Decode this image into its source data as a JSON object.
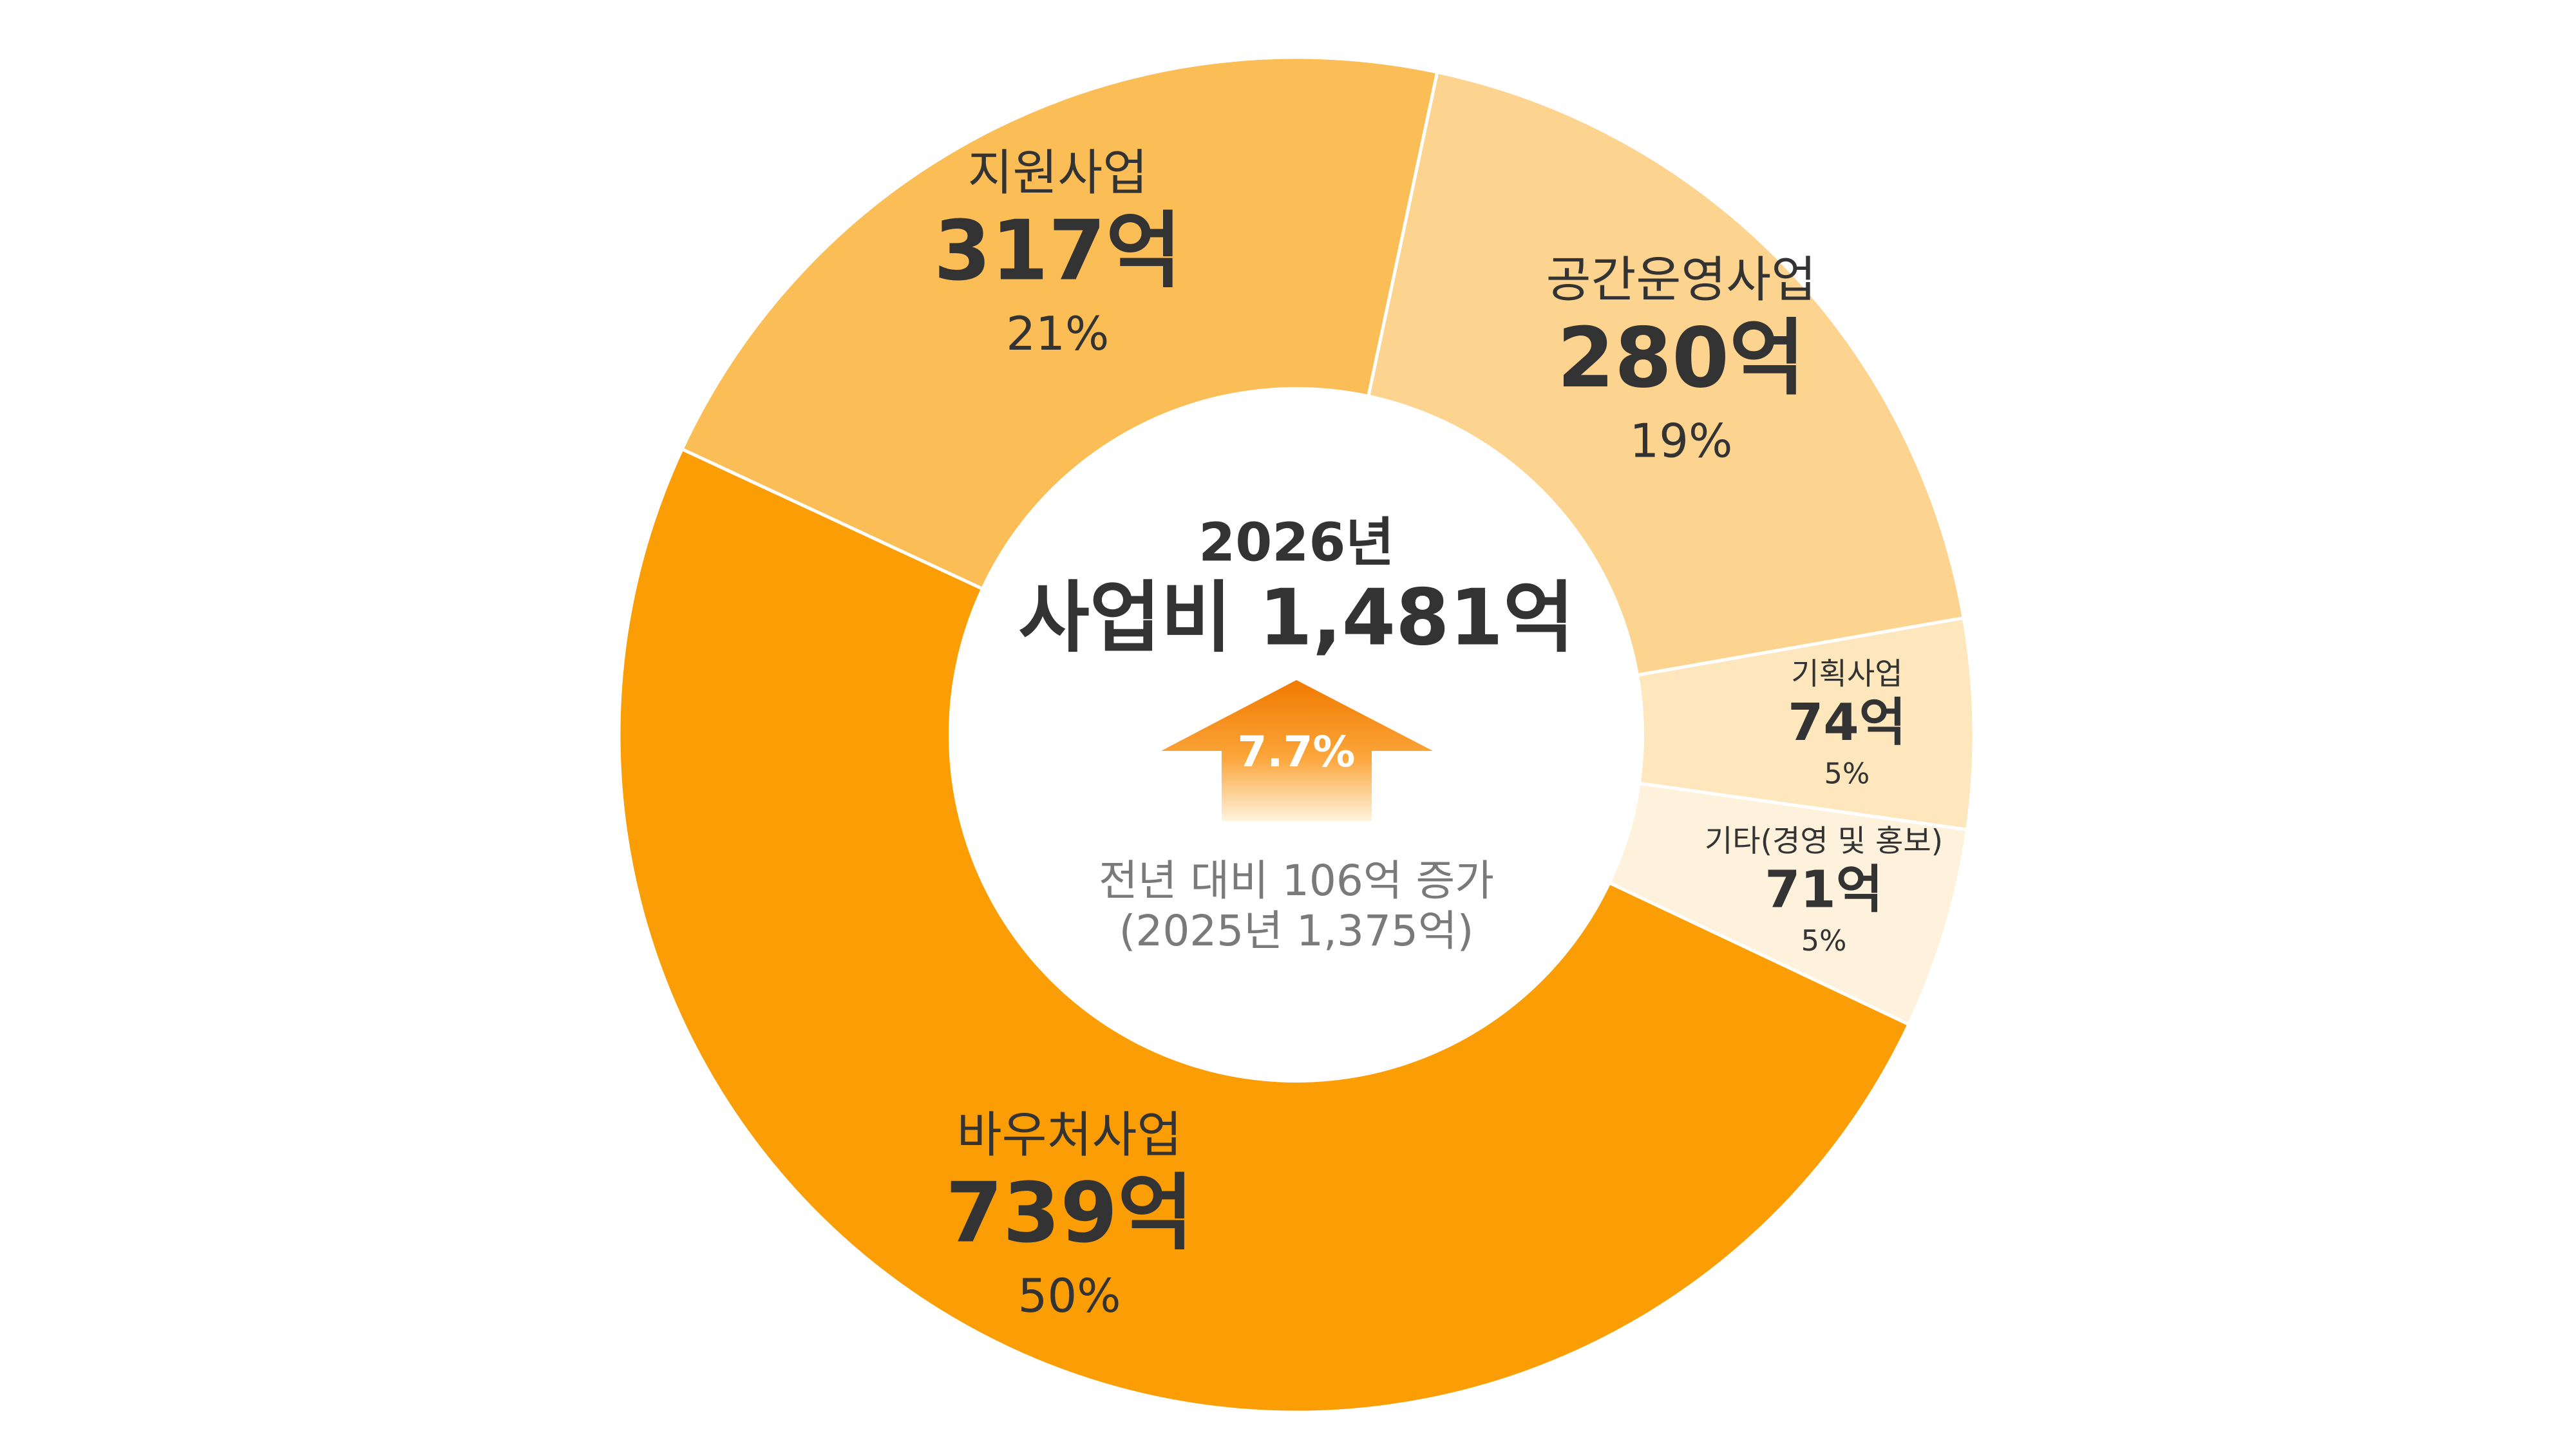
{
  "chart_data": {
    "type": "donut",
    "categories": [
      "공간운영사업",
      "기획사업",
      "기타(경영 및 홍보)",
      "바우처사업",
      "지원사업"
    ],
    "values": [
      280,
      74,
      71,
      739,
      317
    ],
    "value_labels": [
      "280억",
      "74억",
      "71억",
      "739억",
      "317억"
    ],
    "percentages": [
      19,
      5,
      5,
      50,
      21
    ],
    "percentage_labels": [
      "19%",
      "5%",
      "5%",
      "50%",
      "21%"
    ],
    "colors": [
      "#fdd48f",
      "#fee6bd",
      "#fff2dd",
      "#fb9e05",
      "#fbbd55"
    ],
    "center": {
      "year": "2026년",
      "total": "사업비 1,481억",
      "growth": "7.7%",
      "note": "전년 대비 106억 증가",
      "previous": "(2025년 1,375억)"
    }
  }
}
